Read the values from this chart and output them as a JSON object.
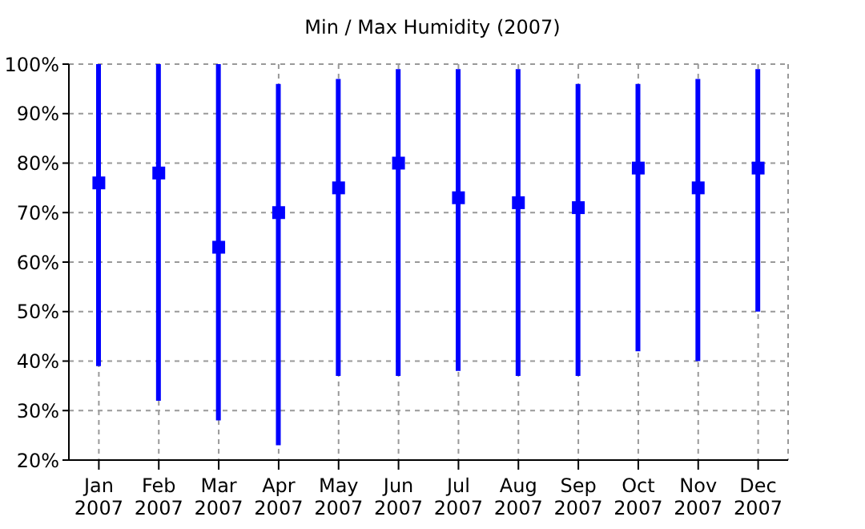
{
  "chart_data": {
    "type": "bar",
    "title": "Min / Max Humidity (2007)",
    "categories": [
      "Jan\n2007",
      "Feb\n2007",
      "Mar\n2007",
      "Apr\n2007",
      "May\n2007",
      "Jun\n2007",
      "Jul\n2007",
      "Aug\n2007",
      "Sep\n2007",
      "Oct\n2007",
      "Nov\n2007",
      "Dec\n2007"
    ],
    "series": [
      {
        "color": "#0000ff",
        "base": [
          39,
          32,
          28,
          23,
          37,
          37,
          38,
          37,
          37,
          42,
          40,
          50
        ],
        "values": [
          61,
          68,
          72,
          73,
          60,
          62,
          61,
          62,
          59,
          54,
          57,
          49
        ]
      },
      {
        "type": "scatter",
        "color": "#0000ff",
        "marker": "square",
        "values": [
          76,
          78,
          63,
          70,
          75,
          80,
          73,
          72,
          71,
          79,
          75,
          79
        ]
      }
    ],
    "ylim": [
      20,
      100
    ],
    "yticks": [
      {
        "value": 20,
        "label": "20%"
      },
      {
        "value": 30,
        "label": "30%"
      },
      {
        "value": 40,
        "label": "40%"
      },
      {
        "value": 50,
        "label": "50%"
      },
      {
        "value": 60,
        "label": "60%"
      },
      {
        "value": 70,
        "label": "70%"
      },
      {
        "value": 80,
        "label": "80%"
      },
      {
        "value": 90,
        "label": "90%"
      },
      {
        "value": 100,
        "label": "100%"
      }
    ],
    "grid": true
  }
}
